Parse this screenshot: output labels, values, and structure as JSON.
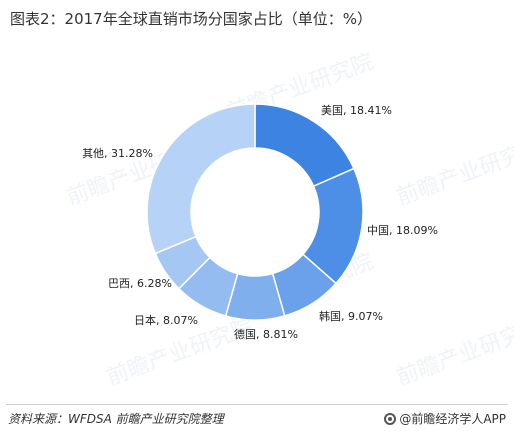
{
  "chart_data": {
    "type": "pie",
    "donut": true,
    "title": "图表2：2017年全球直销市场分国家占比（单位：%）",
    "unit": "%",
    "slices": [
      {
        "label": "美国",
        "value": 18.41,
        "display": "18.41%",
        "color": "#3d83e2"
      },
      {
        "label": "中国",
        "value": 18.09,
        "display": "18.09%",
        "color": "#4d8fe6"
      },
      {
        "label": "韩国",
        "value": 9.07,
        "display": "9.07%",
        "color": "#6ba1ea"
      },
      {
        "label": "德国",
        "value": 8.81,
        "display": "8.81%",
        "color": "#80afee"
      },
      {
        "label": "日本",
        "value": 8.07,
        "display": "8.07%",
        "color": "#94bcf1"
      },
      {
        "label": "巴西",
        "value": 6.28,
        "display": "6.28%",
        "color": "#a5c7f4"
      },
      {
        "label": "其他",
        "value": 31.28,
        "display": "31.28%",
        "color": "#b6d2f6"
      }
    ]
  },
  "watermark": {
    "text": "前瞻产业研究院"
  },
  "footer": {
    "source": "资料来源：WFDSA  前瞻产业研究院整理",
    "brand": "@前瞻经济学人APP"
  }
}
